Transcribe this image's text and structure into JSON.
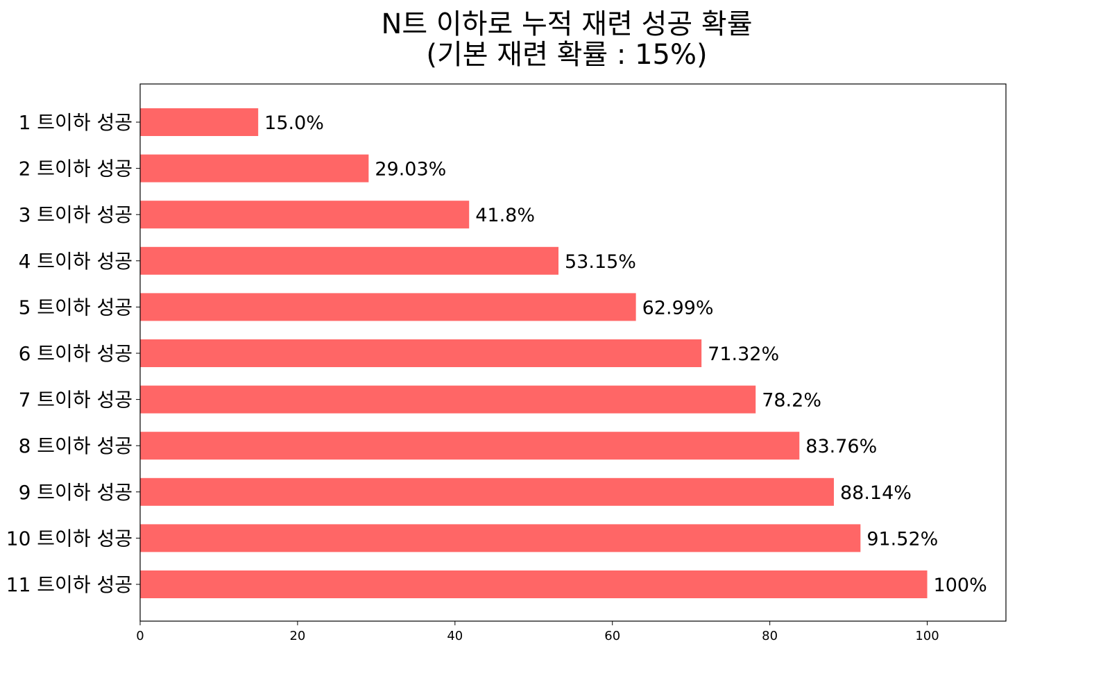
{
  "chart_data": {
    "type": "bar",
    "orientation": "horizontal",
    "title": "N트 이하로 누적 재련 성공 확률\n(기본 재련 확률 : 15%)",
    "xlabel": "",
    "ylabel": "",
    "xlim": [
      0,
      110
    ],
    "xticks": [
      "0",
      "20",
      "40",
      "60",
      "80",
      "100"
    ],
    "grid": false,
    "legend": "none",
    "bar_color": "#FF6666",
    "categories": [
      "1 트이하 성공",
      "2 트이하 성공",
      "3 트이하 성공",
      "4 트이하 성공",
      "5 트이하 성공",
      "6 트이하 성공",
      "7 트이하 성공",
      "8 트이하 성공",
      "9 트이하 성공",
      "10 트이하 성공",
      "11 트이하 성공"
    ],
    "values": [
      15.0,
      29.03,
      41.8,
      53.15,
      62.99,
      71.32,
      78.2,
      83.76,
      88.14,
      91.52,
      100
    ],
    "data_labels": [
      "15.0%",
      "29.03%",
      "41.8%",
      "53.15%",
      "62.99%",
      "71.32%",
      "78.2%",
      "83.76%",
      "88.14%",
      "91.52%",
      "100%"
    ]
  }
}
